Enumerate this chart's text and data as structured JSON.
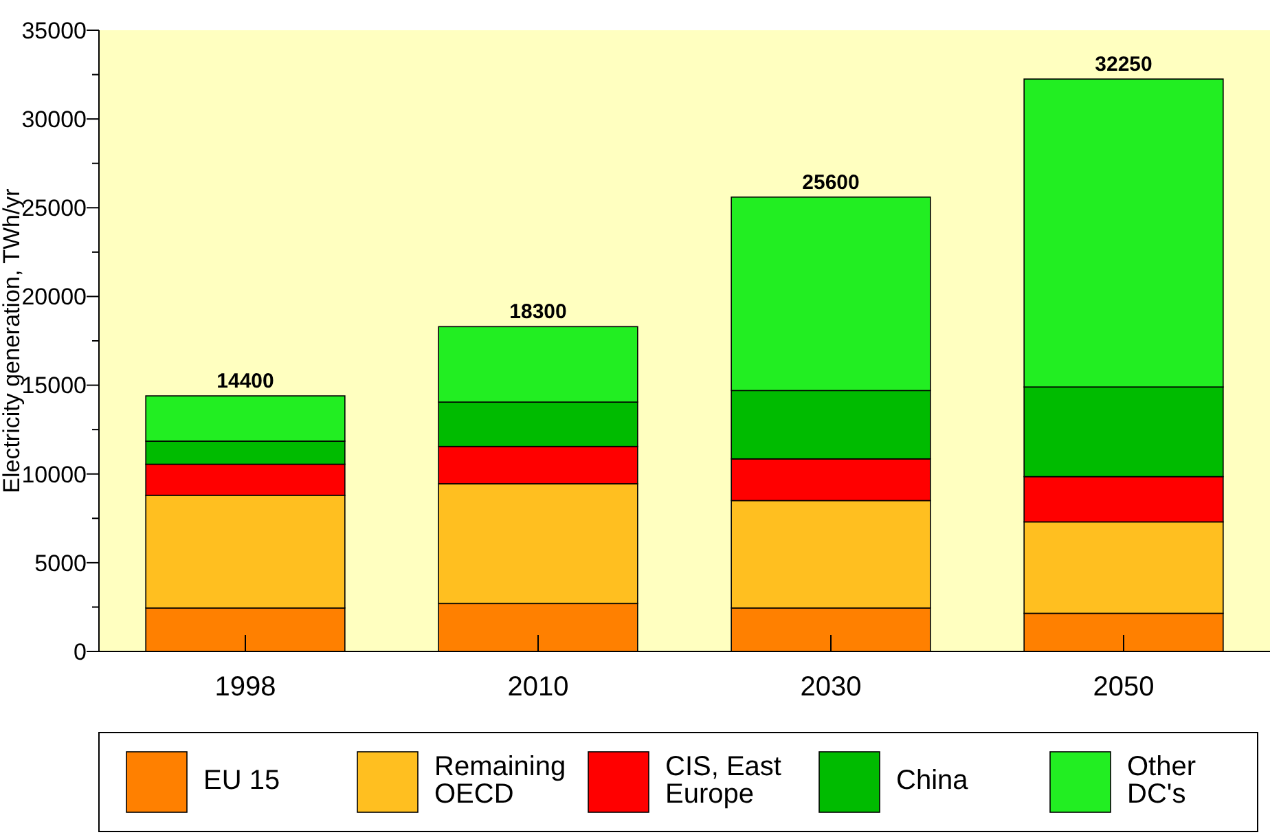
{
  "chart_data": {
    "type": "bar",
    "stacked": true,
    "ylabel": "Electricity generation, TWh/yr",
    "categories": [
      "1998",
      "2010",
      "2030",
      "2050"
    ],
    "series": [
      {
        "name": "EU 15",
        "color": "#ff8000",
        "values": [
          2450,
          2700,
          2450,
          2150
        ]
      },
      {
        "name": "Remaining OECD",
        "color": "#ffbf20",
        "values": [
          6350,
          6750,
          6050,
          5150
        ]
      },
      {
        "name": "CIS, East Europe",
        "color": "#ff0000",
        "values": [
          1750,
          2100,
          2350,
          2550
        ]
      },
      {
        "name": "China",
        "color": "#00bb00",
        "values": [
          1300,
          2500,
          3850,
          5050
        ]
      },
      {
        "name": "Other DC's",
        "color": "#22ee22",
        "values": [
          2550,
          4250,
          10900,
          17350
        ]
      }
    ],
    "totals": [
      "14400",
      "18300",
      "25600",
      "32250"
    ],
    "ylim": [
      0,
      35000
    ],
    "yticks": [
      0,
      {
        "value": 2500,
        "label": null
      },
      5000,
      {
        "value": 7500,
        "label": null
      },
      10000,
      {
        "value": 12500,
        "label": null
      },
      15000,
      {
        "value": 17500,
        "label": null
      },
      20000,
      {
        "value": 22500,
        "label": null
      },
      25000,
      {
        "value": 27500,
        "label": null
      },
      30000,
      {
        "value": 32500,
        "label": null
      },
      35000
    ],
    "legend": "bottom",
    "grid": false
  }
}
